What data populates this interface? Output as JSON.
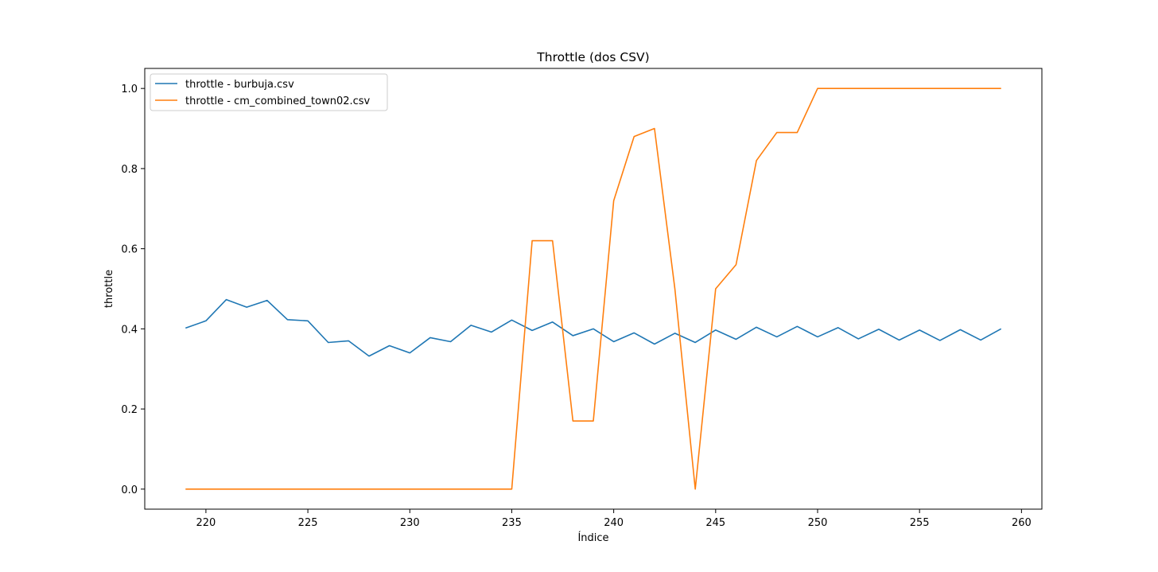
{
  "chart_data": {
    "type": "line",
    "title": "Throttle (dos CSV)",
    "xlabel": "Índice",
    "ylabel": "throttle",
    "xlim": [
      217,
      261
    ],
    "ylim": [
      -0.05,
      1.05
    ],
    "xticks": [
      220,
      225,
      230,
      235,
      240,
      245,
      250,
      255,
      260
    ],
    "xtick_labels": [
      "220",
      "225",
      "230",
      "235",
      "240",
      "245",
      "250",
      "255",
      "260"
    ],
    "yticks": [
      0.0,
      0.2,
      0.4,
      0.6,
      0.8,
      1.0
    ],
    "ytick_labels": [
      "0.0",
      "0.2",
      "0.4",
      "0.6",
      "0.8",
      "1.0"
    ],
    "grid": false,
    "legend_position": "top-left",
    "x": [
      219,
      220,
      221,
      222,
      223,
      224,
      225,
      226,
      227,
      228,
      229,
      230,
      231,
      232,
      233,
      234,
      235,
      236,
      237,
      238,
      239,
      240,
      241,
      242,
      243,
      244,
      245,
      246,
      247,
      248,
      249,
      250,
      251,
      252,
      253,
      254,
      255,
      256,
      257,
      258,
      259
    ],
    "series": [
      {
        "name": "throttle - burbuja.csv",
        "color": "#1f77b4",
        "values": [
          0.402,
          0.42,
          0.473,
          0.454,
          0.471,
          0.423,
          0.42,
          0.366,
          0.37,
          0.332,
          0.358,
          0.34,
          0.378,
          0.368,
          0.409,
          0.392,
          0.422,
          0.396,
          0.417,
          0.383,
          0.4,
          0.368,
          0.39,
          0.362,
          0.389,
          0.366,
          0.397,
          0.374,
          0.404,
          0.38,
          0.406,
          0.38,
          0.403,
          0.375,
          0.399,
          0.372,
          0.397,
          0.371,
          0.398,
          0.372,
          0.4
        ]
      },
      {
        "name": "throttle - cm_combined_town02.csv",
        "color": "#ff7f0e",
        "values": [
          0.0,
          0.0,
          0.0,
          0.0,
          0.0,
          0.0,
          0.0,
          0.0,
          0.0,
          0.0,
          0.0,
          0.0,
          0.0,
          0.0,
          0.0,
          0.0,
          0.0,
          0.62,
          0.62,
          0.17,
          0.17,
          0.72,
          0.88,
          0.9,
          0.5,
          0.0,
          0.5,
          0.56,
          0.82,
          0.89,
          0.89,
          1.0,
          1.0,
          1.0,
          1.0,
          1.0,
          1.0,
          1.0,
          1.0,
          1.0,
          1.0
        ]
      }
    ]
  }
}
